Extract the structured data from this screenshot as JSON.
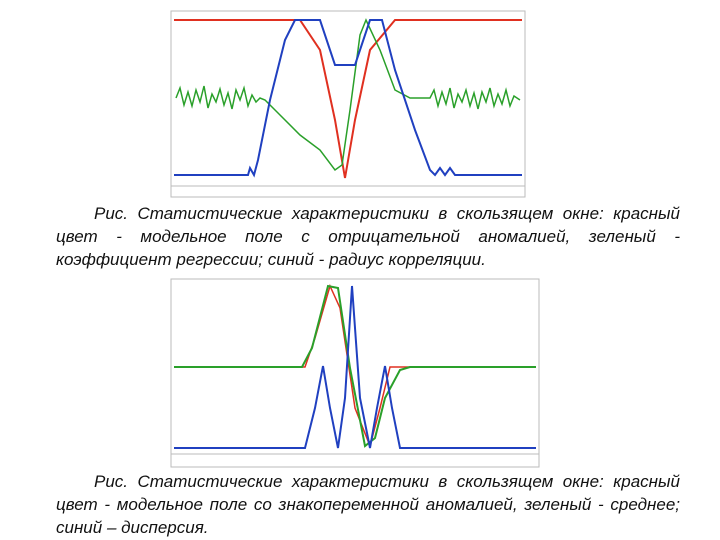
{
  "figures": [
    {
      "caption": "Рис. Статистические характеристики в скользящем окне: красный цвет - модельное поле с отрицательной аномалией, зеленый - коэффициент регрессии; синий - радиус корреляции."
    },
    {
      "caption": "Рис. Статистические характеристики в скользящем окне: красный цвет - модельное поле со знакопеременной аномалией, зеленый - среднее; синий – дисперсия."
    }
  ]
}
